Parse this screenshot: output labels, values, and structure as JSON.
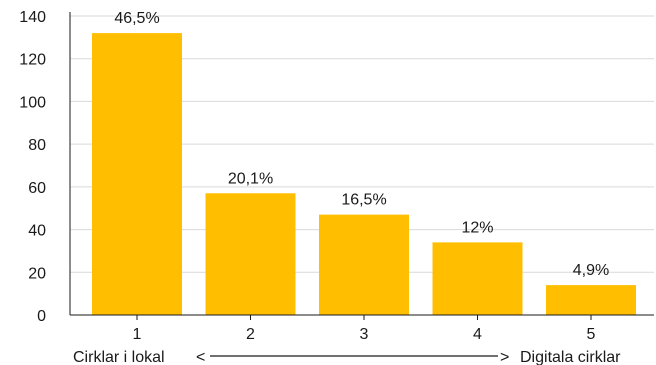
{
  "chart_data": {
    "type": "bar",
    "categories": [
      "1",
      "2",
      "3",
      "4",
      "5"
    ],
    "values": [
      132,
      57,
      47,
      34,
      14
    ],
    "data_labels": [
      "46,5%",
      "20,1%",
      "16,5%",
      "12%",
      "4,9%"
    ],
    "ylim": [
      0,
      140
    ],
    "yticks": [
      0,
      20,
      40,
      60,
      80,
      100,
      120,
      140
    ],
    "grid": true,
    "legend": "none",
    "bar_color": "#FFBF00",
    "grid_color": "#d9d9d9",
    "x_caption": {
      "left": "Cirklar i lokal",
      "right": "Digitala cirklar",
      "left_arrow": "<",
      "right_arrow": ">"
    }
  }
}
